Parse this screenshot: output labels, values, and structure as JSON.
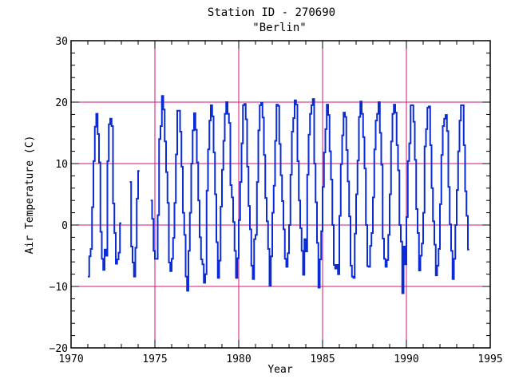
{
  "chart_data": {
    "type": "line",
    "title": "Station ID - 270690",
    "subtitle": "\"Berlin\"",
    "xlabel": "Year",
    "ylabel": "Air Temperature (C)",
    "xlim": [
      1970,
      1995
    ],
    "ylim": [
      -20,
      30
    ],
    "x_ticks": [
      1970,
      1975,
      1980,
      1985,
      1990,
      1995
    ],
    "y_ticks": [
      -20,
      -10,
      0,
      10,
      20,
      30
    ],
    "x_tick_labels": [
      "1970",
      "1975",
      "1980",
      "1985",
      "1990",
      "1995"
    ],
    "y_tick_labels": [
      "−20",
      "−10",
      "0",
      "10",
      "20",
      "30"
    ],
    "x_gridlines": [
      1975,
      1980,
      1985,
      1990
    ],
    "y_gridlines": [
      -10,
      0,
      10,
      20
    ],
    "line_style": "steps",
    "series": [
      {
        "color": "#0a2bd6",
        "segments": [
          {
            "start_year": 1971,
            "values": [
              -8.4,
              -5.1,
              -3.9,
              2.9,
              10.4,
              16.0,
              18.1,
              14.8,
              10.2,
              -1.1,
              -5.5,
              -7.3,
              -4.0,
              -5.0,
              10.4,
              16.4,
              17.3,
              16.1,
              3.5,
              -1.3,
              -6.3,
              -5.6,
              -4.5,
              0.3
            ]
          },
          {
            "start_year": 1973.5,
            "values": [
              7.0,
              -3.5,
              -6.1,
              -8.4,
              -3.7,
              4.3,
              8.8
            ]
          },
          {
            "start_year": 1974.75,
            "values": [
              4.0,
              1.0,
              -4.2,
              -5.5,
              -5.5,
              1.6,
              14.0,
              16.1,
              21.0,
              18.8,
              13.6,
              8.6,
              3.6,
              -6.1,
              -7.5,
              -5.5,
              -2.1,
              3.6,
              11.5,
              18.6,
              18.6,
              15.2,
              9.5,
              2.0,
              -1.6,
              -8.4,
              -10.7,
              -4.2,
              2.0,
              10.0,
              15.4,
              18.2,
              15.5,
              10.2,
              4.0,
              -2.0,
              -5.6,
              -6.4,
              -9.4,
              -8.0,
              5.6,
              12.3,
              17.0,
              19.5,
              17.7,
              11.8,
              5.0,
              -2.8,
              -8.6,
              -5.8,
              3.0,
              9.0,
              13.7,
              18.1,
              20.0,
              18.1,
              16.6,
              6.5,
              4.5,
              0.5,
              -4.2,
              -8.6,
              -5.4,
              0.8,
              7.0,
              13.3,
              19.5,
              19.7,
              17.2,
              9.5,
              3.1,
              -0.7,
              -6.6,
              -8.8,
              -2.3,
              -1.6,
              7.0,
              15.4,
              19.5,
              19.9,
              17.5,
              11.4,
              4.4,
              0.6,
              -3.9,
              -9.9,
              -5.1,
              2.0,
              6.4,
              13.7,
              19.6,
              19.4,
              13.2,
              8.1,
              3.9,
              -0.7,
              -5.5,
              -6.8,
              -4.6,
              0.0,
              8.2,
              15.2,
              17.4,
              20.3,
              19.6,
              10.4,
              4.0,
              -0.5,
              -4.2,
              -8.1,
              -2.3,
              -4.3,
              8.2,
              14.7,
              18.1,
              19.5,
              20.5,
              10.0,
              3.7,
              -2.9,
              -10.2,
              -5.6,
              -1.0,
              6.2,
              11.8,
              15.6,
              19.6,
              17.9,
              12.0,
              7.4,
              0.0,
              -6.5,
              -7.1,
              -6.5,
              -8.0,
              1.5,
              9.9,
              14.6,
              18.3,
              17.6,
              12.2,
              7.1,
              1.4,
              -6.6,
              -8.4,
              -8.6,
              -1.4,
              5.0,
              10.5,
              17.6,
              20.1,
              18.1,
              14.3,
              9.2,
              0.0,
              -6.7,
              -6.8,
              -3.4,
              -1.3,
              4.5,
              12.3,
              17.0,
              18.1,
              20.0,
              15.0,
              9.8,
              -2.2,
              -5.5,
              -6.8,
              -5.7,
              -1.6,
              5.0,
              13.6,
              18.1,
              19.6,
              18.3,
              13.0,
              8.9,
              0.0,
              -2.7,
              -11.1,
              -3.5,
              -6.4,
              1.3,
              10.4,
              13.3,
              19.5,
              19.5,
              16.8,
              10.6,
              2.6,
              -1.3,
              -7.4,
              -5.0,
              -3.0,
              2.0,
              12.8,
              15.6,
              19.1,
              19.3,
              13.0,
              6.0,
              0.6,
              -3.2,
              -8.2,
              -6.6,
              -3.9,
              3.4,
              11.4,
              16.1,
              17.3,
              17.9,
              15.3,
              6.2,
              0.1,
              -4.2,
              -8.8,
              -5.5,
              0.0,
              5.7,
              12.0,
              17.0,
              19.5,
              19.5,
              13.0,
              5.5,
              1.5,
              -4.0
            ]
          }
        ]
      }
    ]
  }
}
